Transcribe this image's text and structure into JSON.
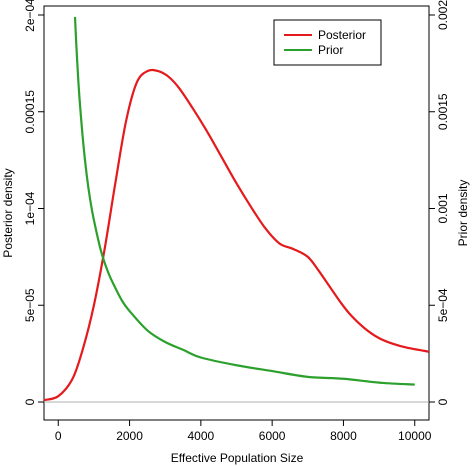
{
  "chart_data": {
    "type": "line",
    "xlabel": "Effective Population Size",
    "ylabel_left": "Posterior density",
    "ylabel_right": "Prior density",
    "xlim": [
      -400,
      10400
    ],
    "ylim_left": [
      0,
      0.0002
    ],
    "ylim_right": [
      0,
      0.002
    ],
    "x_ticks": [
      0,
      2000,
      4000,
      6000,
      8000,
      10000
    ],
    "x_tick_labels": [
      "0",
      "2000",
      "4000",
      "6000",
      "8000",
      "10000"
    ],
    "y_left_ticks": [
      0,
      5e-05,
      0.0001,
      0.00015,
      0.0002
    ],
    "y_left_tick_labels": [
      "0",
      "5e−05",
      "1e−04",
      "0.00015",
      "2e−04"
    ],
    "y_right_ticks": [
      0,
      0.0005,
      0.001,
      0.0015,
      0.002
    ],
    "y_right_tick_labels": [
      "0",
      "5e−04",
      "0.001",
      "0.0015",
      "0.002"
    ],
    "baseline": 0,
    "legend": {
      "placement": "top-right",
      "entries": [
        "Posterior",
        "Prior"
      ]
    },
    "series": [
      {
        "name": "Posterior",
        "axis": "left",
        "color": "#e41a1c",
        "x": [
          -400,
          0,
          400,
          700,
          1000,
          1300,
          1600,
          1900,
          2200,
          2500,
          2800,
          3100,
          3400,
          3800,
          4200,
          4600,
          5000,
          5400,
          5800,
          6200,
          6600,
          7000,
          7300,
          7600,
          7900,
          8200,
          8600,
          9000,
          9400,
          9800,
          10400
        ],
        "y": [
          1e-06,
          3e-06,
          1.2e-05,
          2.8e-05,
          5e-05,
          7.9e-05,
          0.000113,
          0.000145,
          0.000165,
          0.000171,
          0.000171,
          0.000168,
          0.000162,
          0.000151,
          0.000139,
          0.000126,
          0.000113,
          0.000101,
          9e-05,
          8.2e-05,
          7.9e-05,
          7.5e-05,
          6.8e-05,
          6e-05,
          5.2e-05,
          4.5e-05,
          3.8e-05,
          3.3e-05,
          3e-05,
          2.8e-05,
          2.6e-05
        ]
      },
      {
        "name": "Prior",
        "axis": "right",
        "color": "#2ca02c",
        "x": [
          470,
          500,
          550,
          600,
          700,
          800,
          900,
          1000,
          1200,
          1400,
          1600,
          1800,
          2000,
          2500,
          3000,
          3500,
          4000,
          5000,
          6000,
          7000,
          8000,
          9000,
          10000
        ],
        "y": [
          0.00199,
          0.00187,
          0.0017,
          0.00156,
          0.00134,
          0.00117,
          0.00104,
          0.00094,
          0.00078,
          0.00067,
          0.00059,
          0.00052,
          0.00047,
          0.00037,
          0.00031,
          0.00027,
          0.00023,
          0.00019,
          0.00016,
          0.00013,
          0.00012,
          0.0001,
          9e-05
        ]
      }
    ]
  }
}
